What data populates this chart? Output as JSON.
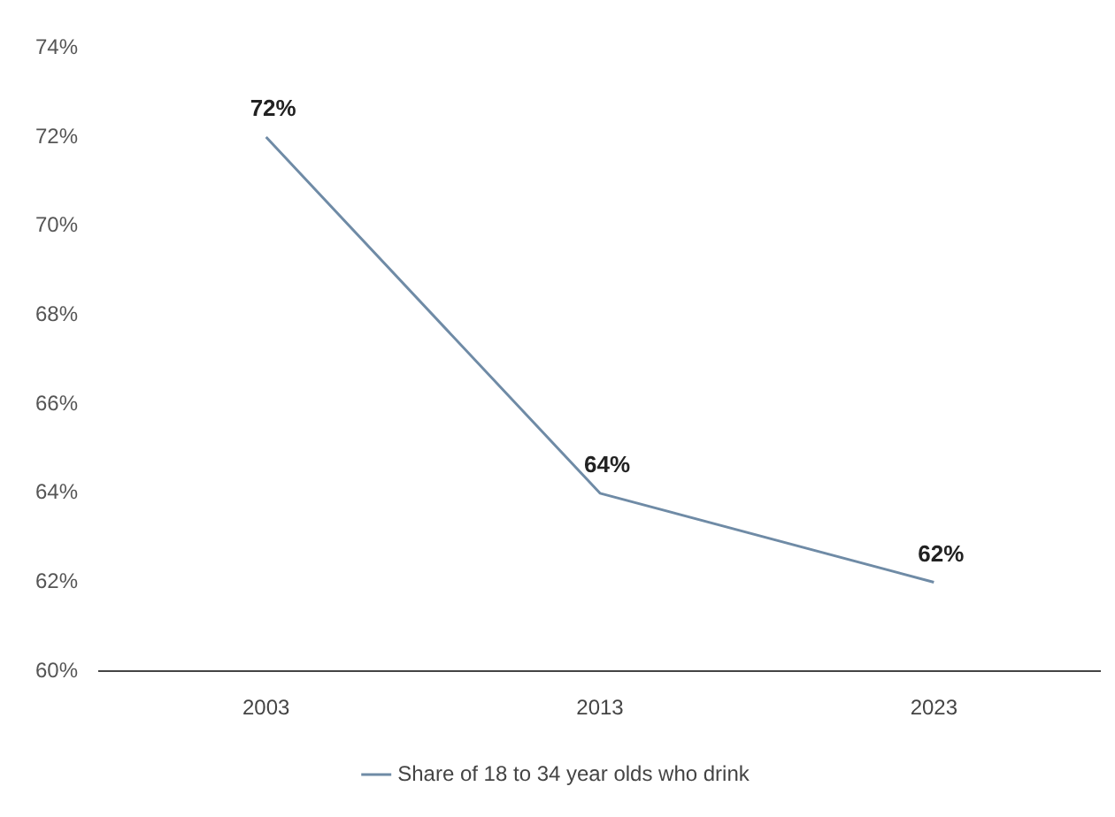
{
  "chart_data": {
    "type": "line",
    "categories": [
      "2003",
      "2013",
      "2023"
    ],
    "series": [
      {
        "name": "Share of 18 to 34 year olds who drink",
        "color": "#6f8ba6",
        "values": [
          72,
          64,
          62
        ],
        "value_labels": [
          "72%",
          "64%",
          "62%"
        ]
      }
    ],
    "ylim": [
      60,
      74
    ],
    "yticks": [
      {
        "value": 60,
        "label": "60%"
      },
      {
        "value": 62,
        "label": "62%"
      },
      {
        "value": 64,
        "label": "64%"
      },
      {
        "value": 66,
        "label": "66%"
      },
      {
        "value": 68,
        "label": "68%"
      },
      {
        "value": 70,
        "label": "70%"
      },
      {
        "value": 72,
        "label": "72%"
      },
      {
        "value": 74,
        "label": "74%"
      }
    ],
    "grid": false,
    "legend": "bottom",
    "marker": "none",
    "line_style": "solid"
  }
}
